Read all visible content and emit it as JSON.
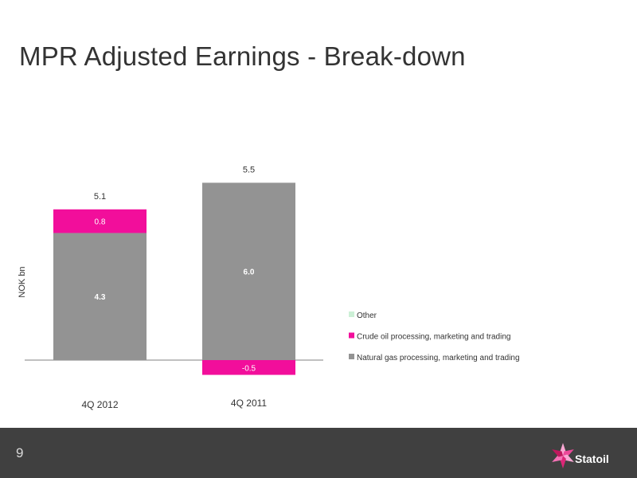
{
  "slide": {
    "title": "MPR Adjusted Earnings - Break-down",
    "page_number": "9",
    "logo_text": "Statoil"
  },
  "colors": {
    "natural_gas": "#939393",
    "crude_oil": "#f20e9b",
    "other": "#ccf0d6",
    "footer": "#404040"
  },
  "chart_data": {
    "type": "bar",
    "stacked": true,
    "categories": [
      "4Q 2012",
      "4Q 2011"
    ],
    "ylabel": "NOK bn",
    "totals": [
      "5.1",
      "5.5"
    ],
    "series": [
      {
        "name": "Natural gas processing, marketing and trading",
        "values": [
          4.3,
          6.0
        ],
        "labels": [
          "4.3",
          "6.0"
        ],
        "color": "#939393"
      },
      {
        "name": "Crude oil processing, marketing and trading",
        "values": [
          0.8,
          -0.5
        ],
        "labels": [
          "0.8",
          "-0.5"
        ],
        "color": "#f20e9b"
      },
      {
        "name": "Other",
        "values": [
          0,
          0
        ],
        "labels": [
          "",
          ""
        ],
        "color": "#ccf0d6"
      }
    ],
    "legend": [
      "Other",
      "Crude oil processing, marketing and trading",
      "Natural gas processing, marketing and trading"
    ],
    "legend_position": "right"
  }
}
